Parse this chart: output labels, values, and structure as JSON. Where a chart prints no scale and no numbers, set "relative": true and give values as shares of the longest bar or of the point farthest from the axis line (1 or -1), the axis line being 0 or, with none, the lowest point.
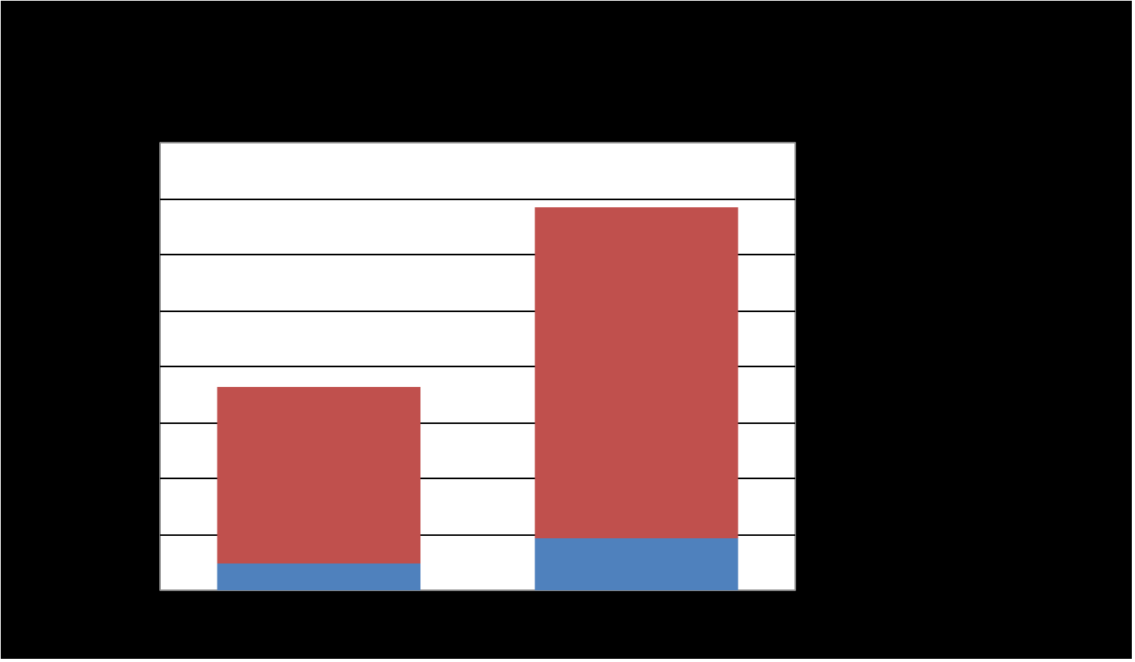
{
  "chart_data": {
    "type": "bar",
    "stacked": true,
    "relative": true,
    "categories": [
      null,
      null
    ],
    "series": [
      {
        "color": "#4f81bd",
        "values": [
          0.07,
          0.136
        ]
      },
      {
        "color": "#c0504d",
        "values": [
          0.461,
          0.864
        ]
      }
    ],
    "grid": "y"
  }
}
